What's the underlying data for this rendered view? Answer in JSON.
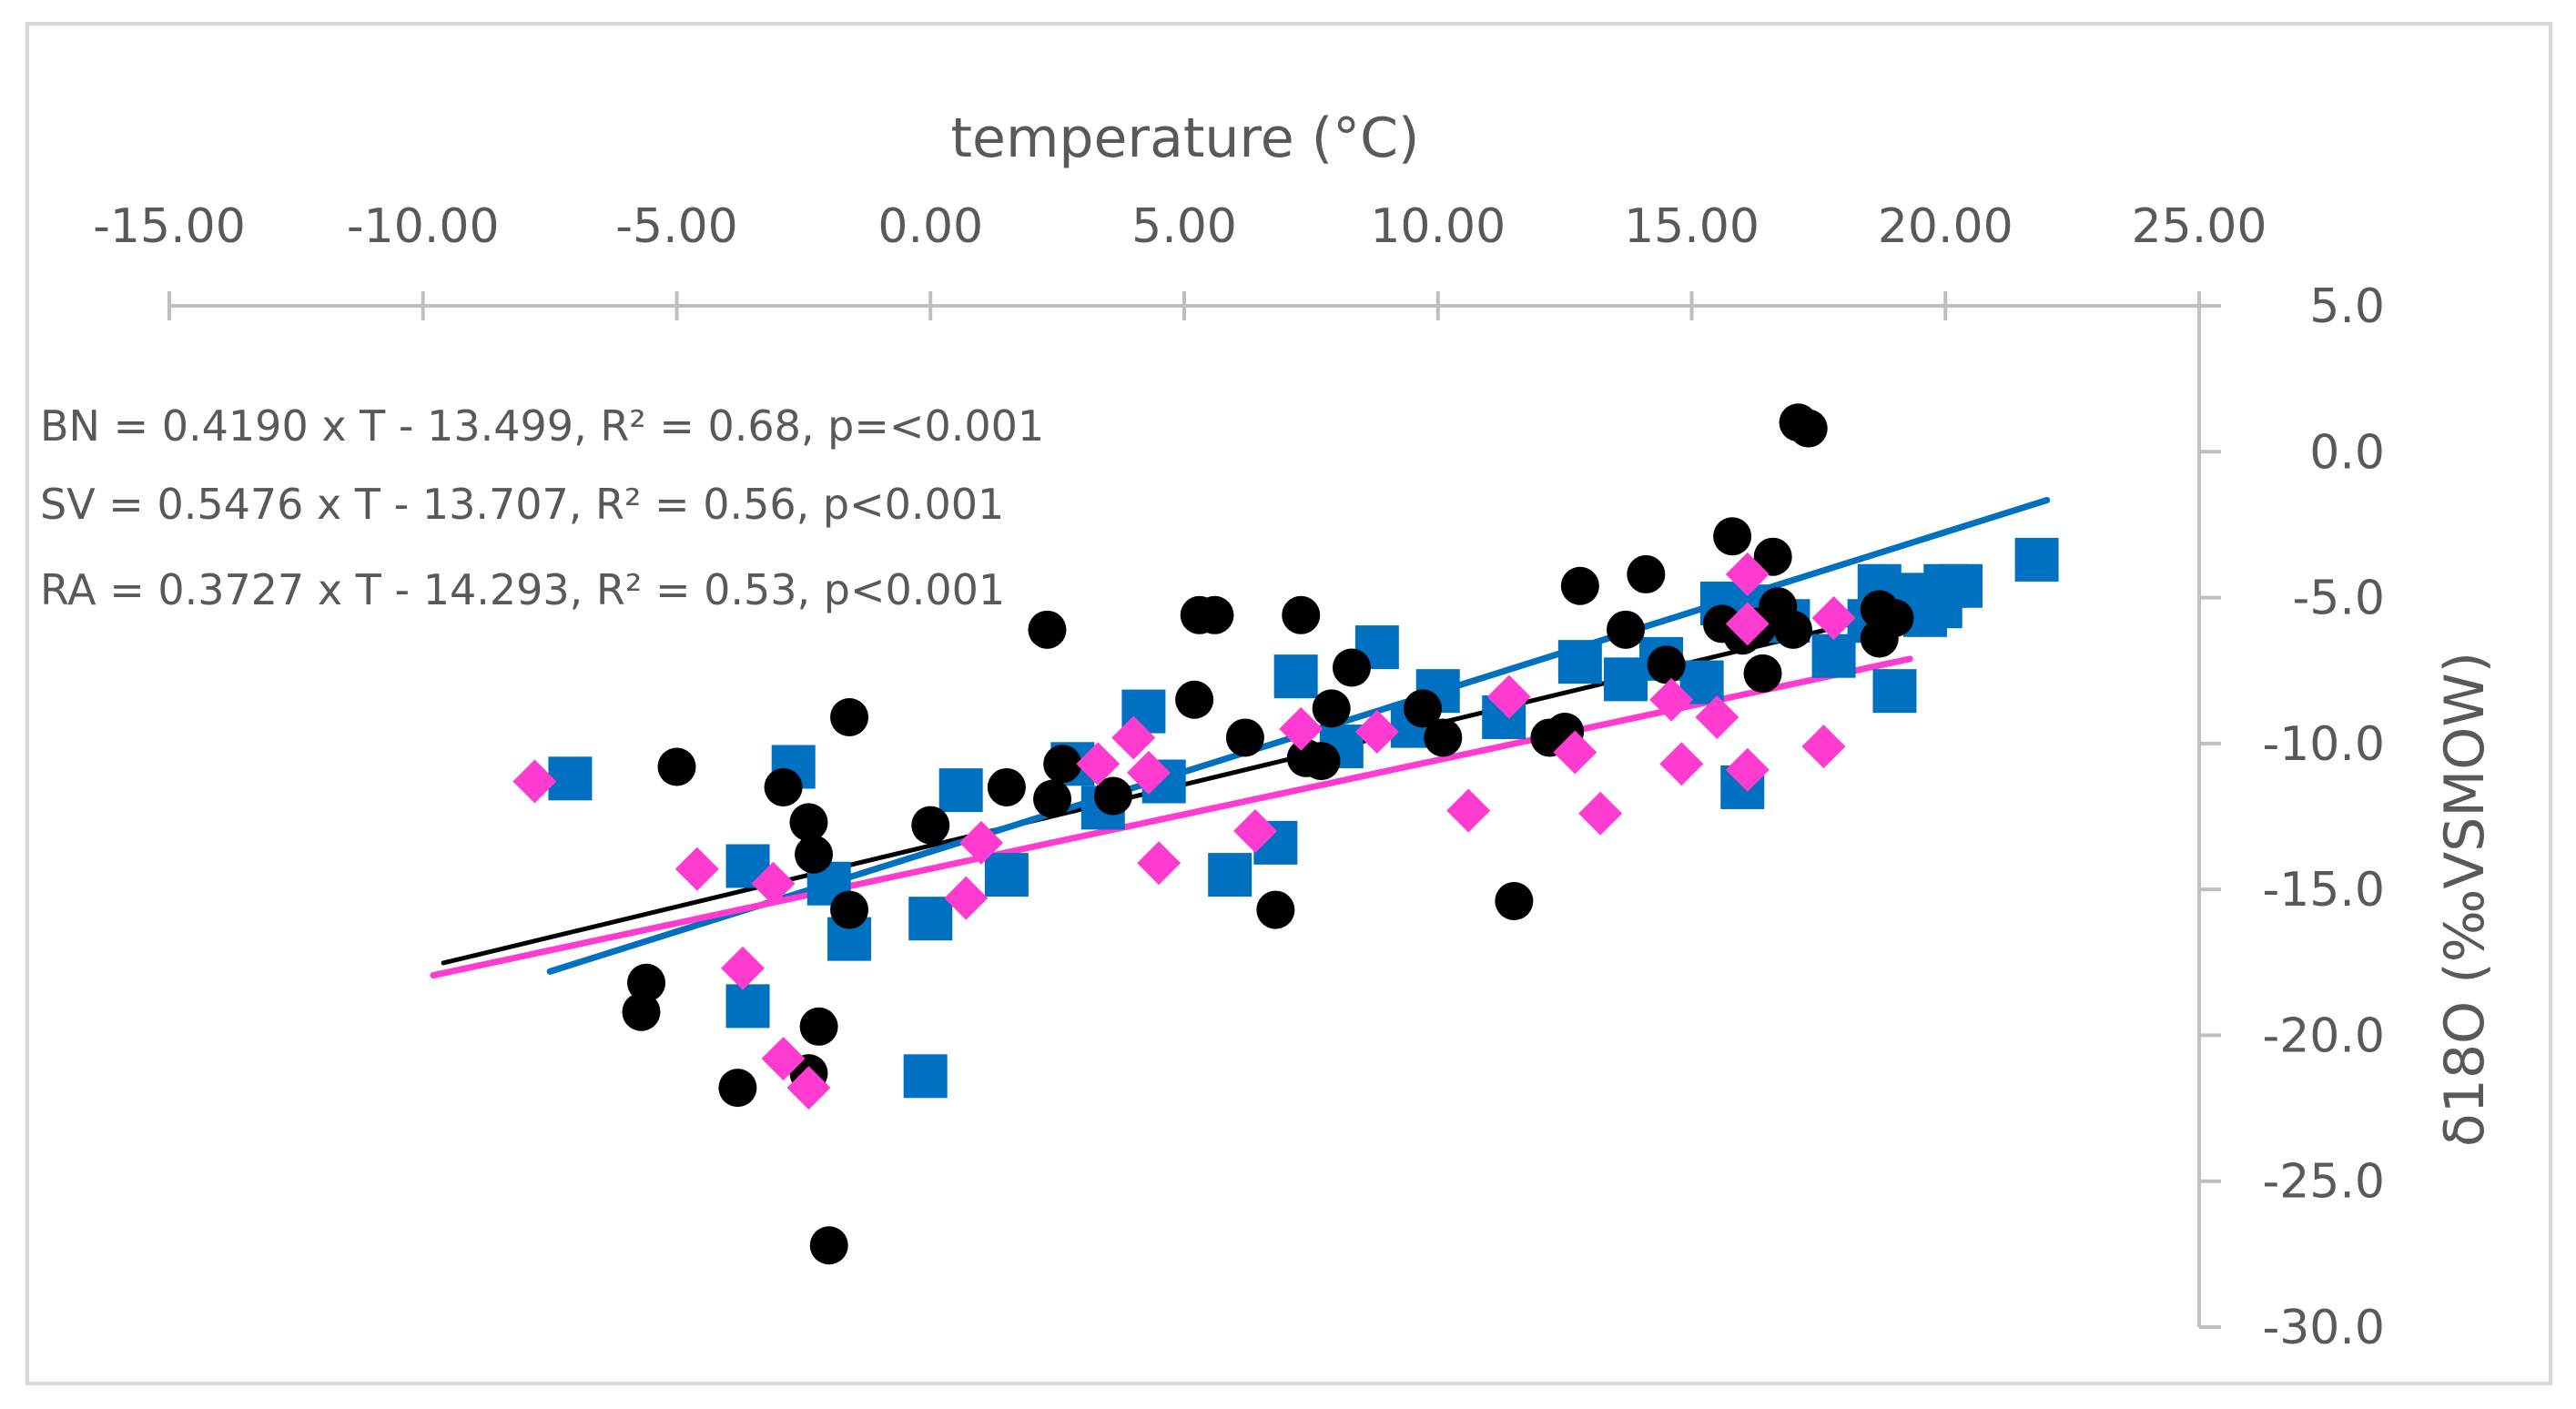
{
  "chart_data": {
    "type": "scatter",
    "title": "",
    "xlabel": "temperature (°C)",
    "ylabel": "δ18O (‰VSMOW)",
    "xlim": [
      -15,
      25
    ],
    "ylim": [
      -30,
      5
    ],
    "x_ticks": [
      "-15.00",
      "-10.00",
      "-5.00",
      "0.00",
      "5.00",
      "10.00",
      "15.00",
      "20.00",
      "25.00"
    ],
    "y_ticks": [
      "5.0",
      "0.0",
      "-5.0",
      "-10.0",
      "-15.0",
      "-20.0",
      "-25.0",
      "-30.0"
    ],
    "equations": [
      "BN = 0.4190 x T - 13.499, R² = 0.68, p=<0.001",
      "SV = 0.5476 x T - 13.707, R² = 0.56, p<0.001",
      "RA = 0.3727 x T - 14.293, R² = 0.53, p<0.001"
    ],
    "series": [
      {
        "name": "BN",
        "marker": "circle",
        "color": "#000000",
        "points": [
          [
            -5.6,
            -18.2
          ],
          [
            -5.7,
            -19.2
          ],
          [
            -5.0,
            -10.8
          ],
          [
            -3.8,
            -21.8
          ],
          [
            -2.9,
            -11.5
          ],
          [
            -2.4,
            -12.7
          ],
          [
            -2.3,
            -13.8
          ],
          [
            -2.2,
            -19.7
          ],
          [
            -2.4,
            -21.3
          ],
          [
            -2.0,
            -27.2
          ],
          [
            -1.6,
            -9.1
          ],
          [
            -1.6,
            -15.7
          ],
          [
            0.0,
            -12.8
          ],
          [
            1.5,
            -11.5
          ],
          [
            2.4,
            -11.9
          ],
          [
            2.3,
            -6.1
          ],
          [
            2.6,
            -10.7
          ],
          [
            3.6,
            -11.8
          ],
          [
            5.2,
            -8.5
          ],
          [
            5.3,
            -5.6
          ],
          [
            5.6,
            -5.6
          ],
          [
            6.2,
            -9.8
          ],
          [
            6.8,
            -15.7
          ],
          [
            7.3,
            -5.6
          ],
          [
            7.4,
            -10.5
          ],
          [
            7.7,
            -10.6
          ],
          [
            7.9,
            -8.8
          ],
          [
            8.3,
            -7.4
          ],
          [
            9.7,
            -8.8
          ],
          [
            10.1,
            -9.8
          ],
          [
            11.5,
            -15.4
          ],
          [
            12.2,
            -9.8
          ],
          [
            12.5,
            -9.6
          ],
          [
            12.8,
            -4.6
          ],
          [
            13.7,
            -6.1
          ],
          [
            14.1,
            -4.2
          ],
          [
            14.5,
            -7.3
          ],
          [
            15.6,
            -5.9
          ],
          [
            15.8,
            -2.9
          ],
          [
            16.0,
            -6.3
          ],
          [
            16.3,
            -6.0
          ],
          [
            16.4,
            -7.6
          ],
          [
            16.6,
            -3.6
          ],
          [
            16.7,
            -5.3
          ],
          [
            17.0,
            -6.1
          ],
          [
            17.1,
            1.0
          ],
          [
            17.3,
            0.8
          ],
          [
            18.7,
            -5.4
          ],
          [
            18.7,
            -6.4
          ],
          [
            19.0,
            -5.7
          ]
        ]
      },
      {
        "name": "SV",
        "marker": "square",
        "color": "#0070C0",
        "points": [
          [
            -7.1,
            -11.2
          ],
          [
            -3.6,
            -14.2
          ],
          [
            -3.6,
            -19.0
          ],
          [
            -2.7,
            -10.8
          ],
          [
            -2.0,
            -14.8
          ],
          [
            -1.6,
            -16.7
          ],
          [
            -0.1,
            -21.4
          ],
          [
            0.0,
            -16.0
          ],
          [
            0.6,
            -11.6
          ],
          [
            1.5,
            -14.5
          ],
          [
            2.8,
            -10.7
          ],
          [
            3.4,
            -12.2
          ],
          [
            4.2,
            -8.9
          ],
          [
            4.6,
            -11.3
          ],
          [
            5.9,
            -14.5
          ],
          [
            6.8,
            -13.4
          ],
          [
            7.2,
            -7.7
          ],
          [
            8.1,
            -10.1
          ],
          [
            8.8,
            -6.7
          ],
          [
            9.5,
            -9.4
          ],
          [
            10.0,
            -8.2
          ],
          [
            11.3,
            -9.1
          ],
          [
            12.8,
            -7.2
          ],
          [
            13.7,
            -7.8
          ],
          [
            14.4,
            -7.1
          ],
          [
            15.2,
            -7.9
          ],
          [
            15.6,
            -5.2
          ],
          [
            16.0,
            -11.5
          ],
          [
            16.3,
            -5.3
          ],
          [
            16.9,
            -5.8
          ],
          [
            17.8,
            -7.0
          ],
          [
            18.5,
            -5.8
          ],
          [
            18.7,
            -4.6
          ],
          [
            19.0,
            -8.2
          ],
          [
            19.3,
            -5.2
          ],
          [
            19.5,
            -4.9
          ],
          [
            19.6,
            -5.6
          ],
          [
            19.9,
            -5.3
          ],
          [
            20.0,
            -4.6
          ],
          [
            20.3,
            -4.6
          ],
          [
            21.8,
            -3.7
          ]
        ]
      },
      {
        "name": "RA",
        "marker": "diamond",
        "color": "#FF3BD0",
        "points": [
          [
            -7.8,
            -11.3
          ],
          [
            -4.6,
            -14.3
          ],
          [
            -3.7,
            -17.7
          ],
          [
            -3.1,
            -14.8
          ],
          [
            -2.9,
            -20.8
          ],
          [
            -2.4,
            -21.8
          ],
          [
            0.7,
            -15.3
          ],
          [
            1.0,
            -13.4
          ],
          [
            3.3,
            -10.7
          ],
          [
            4.0,
            -9.8
          ],
          [
            4.3,
            -11.0
          ],
          [
            4.5,
            -14.1
          ],
          [
            6.4,
            -13.0
          ],
          [
            7.3,
            -9.5
          ],
          [
            8.8,
            -9.6
          ],
          [
            10.6,
            -12.3
          ],
          [
            11.4,
            -8.4
          ],
          [
            12.7,
            -10.3
          ],
          [
            13.2,
            -12.4
          ],
          [
            14.6,
            -8.5
          ],
          [
            14.8,
            -10.7
          ],
          [
            15.5,
            -9.1
          ],
          [
            16.1,
            -4.2
          ],
          [
            16.1,
            -5.9
          ],
          [
            16.1,
            -10.9
          ],
          [
            17.6,
            -10.1
          ],
          [
            17.8,
            -5.7
          ]
        ]
      }
    ],
    "trendlines": [
      {
        "name": "BN",
        "color": "#000000",
        "slope": 0.419,
        "intercept": -13.499,
        "x_range": [
          -9.6,
          20.4
        ]
      },
      {
        "name": "SV",
        "color": "#0070C0",
        "slope": 0.5476,
        "intercept": -13.707,
        "x_range": [
          -7.5,
          22.0
        ]
      },
      {
        "name": "RA",
        "color": "#FF3BD0",
        "slope": 0.3727,
        "intercept": -14.293,
        "x_range": [
          -9.8,
          19.3
        ]
      }
    ]
  }
}
